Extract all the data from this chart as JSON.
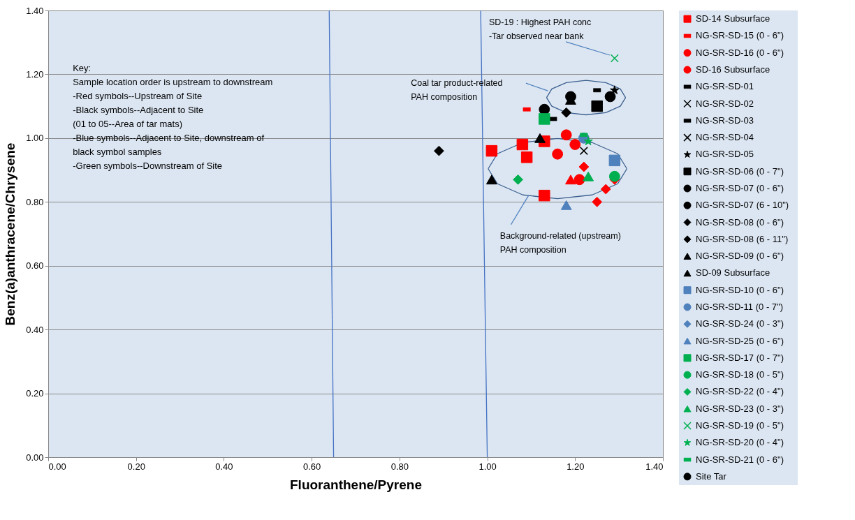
{
  "chart_data": {
    "type": "scatter",
    "xlabel": "Fluoranthene/Pyrene",
    "ylabel": "Benz(a)anthracene/Chrysene",
    "xlim": [
      0,
      1.4
    ],
    "ylim": [
      0,
      1.4
    ],
    "xticks": [
      {
        "value": 0,
        "label": "0.00"
      },
      {
        "value": 0.2,
        "label": "0.20"
      },
      {
        "value": 0.4,
        "label": "0.40"
      },
      {
        "value": 0.6,
        "label": "0.60"
      },
      {
        "value": 0.8,
        "label": "0.80"
      },
      {
        "value": 1.0,
        "label": "1.00"
      },
      {
        "value": 1.2,
        "label": "1.20"
      },
      {
        "value": 1.4,
        "label": "1.40"
      }
    ],
    "yticks": [
      {
        "value": 0,
        "label": "0.00"
      },
      {
        "value": 0.2,
        "label": "0.20"
      },
      {
        "value": 0.4,
        "label": "0.40"
      },
      {
        "value": 0.6,
        "label": "0.60"
      },
      {
        "value": 0.8,
        "label": "0.80"
      },
      {
        "value": 1.0,
        "label": "1.00"
      },
      {
        "value": 1.2,
        "label": "1.20"
      },
      {
        "value": 1.4,
        "label": "1.40"
      }
    ],
    "grid": "y",
    "legend": "right",
    "annotations": [
      "Key:\nSample location order is upstream to downstream\n-Red symbols--Upstream of Site\n-Black symbols--Adjacent to Site\n (01 to 05--Area of tar mats)\n-Blue symbols--Adjacent to Site, downstream of\n black symbol samples\n-Green symbols--Downstream of Site",
      "SD-19 : Highest PAH conc\n-Tar observed near bank",
      "Coal tar product-related\nPAH composition",
      "Background-related (upstream)\nPAH composition"
    ],
    "series": [
      {
        "type": "line",
        "color": "#4472c4",
        "x": [
          0.65,
          0.64
        ],
        "values": [
          0,
          1.4
        ]
      },
      {
        "type": "line",
        "color": "#4472c4",
        "x": [
          1.0,
          0.985
        ],
        "values": [
          0,
          1.4
        ]
      },
      {
        "type": "line",
        "color": "#3b5f8f",
        "x": [
          1.315,
          1.303,
          1.27,
          1.225,
          1.18,
          1.147,
          1.135
        ],
        "values": [
          1.127,
          1.154,
          1.174,
          1.181,
          1.174,
          1.154,
          1.127
        ]
      },
      {
        "type": "line",
        "color": "#3b5f8f",
        "x": [
          1.135,
          1.147,
          1.18,
          1.225,
          1.27,
          1.303,
          1.315
        ],
        "values": [
          1.127,
          1.1,
          1.08,
          1.073,
          1.08,
          1.1,
          1.127
        ]
      },
      {
        "type": "line",
        "color": "#3b5f8f",
        "x": [
          1.318,
          1.297,
          1.239,
          1.16,
          1.081,
          1.023,
          1.002
        ],
        "values": [
          0.904,
          0.951,
          0.986,
          0.999,
          0.986,
          0.951,
          0.904
        ]
      },
      {
        "type": "line",
        "color": "#3b5f8f",
        "x": [
          1.002,
          1.023,
          1.081,
          1.16,
          1.239,
          1.297,
          1.318
        ],
        "values": [
          0.904,
          0.857,
          0.822,
          0.81,
          0.822,
          0.857,
          0.904
        ]
      },
      {
        "type": "line",
        "color": "#4f81bd",
        "x": [
          1.088,
          1.138
        ],
        "values": [
          1.172,
          1.148
        ]
      },
      {
        "type": "line",
        "color": "#4f81bd",
        "x": [
          1.179,
          1.279
        ],
        "values": [
          1.302,
          1.26
        ]
      },
      {
        "type": "line",
        "color": "#4f81bd",
        "x": [
          1.054,
          1.094
        ],
        "values": [
          0.729,
          0.82
        ]
      },
      {
        "color": "#ff0000",
        "marker": "square",
        "x": [
          1.09
        ],
        "values": [
          0.94
        ]
      },
      {
        "color": "#ff0000",
        "marker": "triangle",
        "x": [
          1.19
        ],
        "values": [
          0.87
        ]
      },
      {
        "color": "#ff0000",
        "marker": "diamond",
        "x": [
          1.25
        ],
        "values": [
          0.8
        ]
      },
      {
        "color": "#ff0000",
        "marker": "diamond",
        "x": [
          1.22,
          1.27,
          1.29
        ],
        "values": [
          0.91,
          0.84,
          0.87
        ]
      },
      {
        "name": "SD-14 Subsurface",
        "color": "#ff0000",
        "marker": "square",
        "x": [
          1.01,
          1.08,
          1.13,
          1.13
        ],
        "values": [
          0.96,
          0.98,
          0.99,
          0.82
        ]
      },
      {
        "name": "NG-SR-SD-15 (0 - 6\")",
        "color": "#ff0000",
        "x": [
          1.09
        ],
        "values": [
          1.09
        ]
      },
      {
        "name": "NG-SR-SD-16 (0 - 6\")",
        "color": "#ff0000",
        "marker": "circle",
        "x": [
          1.16
        ],
        "values": [
          0.95
        ]
      },
      {
        "name": "SD-16 Subsurface",
        "color": "#ff0000",
        "marker": "circle",
        "x": [
          1.18,
          1.2,
          1.21
        ],
        "values": [
          1.01,
          0.98,
          0.87
        ]
      },
      {
        "name": "NG-SR-SD-01",
        "color": "#000000",
        "x": [
          1.25
        ],
        "values": [
          1.15
        ]
      },
      {
        "name": "NG-SR-SD-02",
        "color": "#000000",
        "marker": "cross",
        "x": [
          1.22
        ],
        "values": [
          0.96
        ]
      },
      {
        "name": "NG-SR-SD-03",
        "color": "#000000",
        "x": [
          1.15
        ],
        "values": [
          1.06
        ]
      },
      {
        "name": "NG-SR-SD-04",
        "color": "#000000",
        "marker": "cross",
        "x": [
          null
        ],
        "values": [
          null
        ]
      },
      {
        "name": "NG-SR-SD-05",
        "color": "#000000",
        "marker": "star",
        "x": [
          1.29
        ],
        "values": [
          1.15
        ]
      },
      {
        "name": "NG-SR-SD-06 (0 - 7\")",
        "color": "#000000",
        "marker": "square",
        "x": [
          1.25
        ],
        "values": [
          1.1
        ]
      },
      {
        "name": "NG-SR-SD-07 (0 - 6\")",
        "color": "#000000",
        "marker": "circle",
        "x": [
          1.28
        ],
        "values": [
          1.13
        ]
      },
      {
        "name": "NG-SR-SD-07 (6 - 10\")",
        "color": "#000000",
        "marker": "circle",
        "x": [
          1.13
        ],
        "values": [
          1.09
        ]
      },
      {
        "name": "NG-SR-SD-08 (0 - 6\")",
        "color": "#000000",
        "marker": "diamond",
        "x": [
          1.18
        ],
        "values": [
          1.08
        ]
      },
      {
        "name": "NG-SR-SD-08 (6 - 11\")",
        "color": "#000000",
        "marker": "diamond",
        "x": [
          0.89
        ],
        "values": [
          0.96
        ]
      },
      {
        "name": "NG-SR-SD-09 (0 - 6\")",
        "color": "#000000",
        "marker": "triangle",
        "x": [
          1.19
        ],
        "values": [
          1.12
        ]
      },
      {
        "name": "SD-09 Subsurface",
        "color": "#000000",
        "marker": "triangle",
        "x": [
          1.01,
          1.12
        ],
        "values": [
          0.87,
          1.0
        ]
      },
      {
        "name": "NG-SR-SD-10 (0 - 6\")",
        "color": "#4f81bd",
        "marker": "square",
        "x": [
          1.29
        ],
        "values": [
          0.93
        ]
      },
      {
        "name": "NG-SR-SD-11 (0 - 7\")",
        "color": "#4f81bd",
        "marker": "circle",
        "x": [
          1.22
        ],
        "values": [
          1.0
        ]
      },
      {
        "name": "NG-SR-SD-24 (0 - 3\")",
        "color": "#4f81bd",
        "marker": "diamond",
        "x": [
          null
        ],
        "values": [
          null
        ]
      },
      {
        "name": "NG-SR-SD-25 (0 - 6\")",
        "color": "#4f81bd",
        "marker": "triangle",
        "x": [
          1.18
        ],
        "values": [
          0.79
        ]
      },
      {
        "name": "NG-SR-SD-17 (0 - 7\")",
        "color": "#00b050",
        "marker": "square",
        "x": [
          1.13
        ],
        "values": [
          1.06
        ]
      },
      {
        "name": "NG-SR-SD-18 (0 - 5\")",
        "color": "#00b050",
        "marker": "circle",
        "x": [
          1.29
        ],
        "values": [
          0.88
        ]
      },
      {
        "name": "NG-SR-SD-22 (0 - 4\")",
        "color": "#00b050",
        "marker": "diamond",
        "x": [
          1.07
        ],
        "values": [
          0.87
        ]
      },
      {
        "name": "NG-SR-SD-23 (0 - 3\")",
        "color": "#00b050",
        "marker": "triangle",
        "x": [
          1.23
        ],
        "values": [
          0.88
        ]
      },
      {
        "name": "NG-SR-SD-19 (0 - 5\")",
        "color": "#00b050",
        "marker": "cross",
        "x": [
          1.29
        ],
        "values": [
          1.25
        ]
      },
      {
        "name": "NG-SR-SD-20 (0 - 4\")",
        "color": "#00b050",
        "marker": "star",
        "x": [
          1.23
        ],
        "values": [
          0.99
        ]
      },
      {
        "name": "NG-SR-SD-21 (0 - 6\")",
        "color": "#00b050",
        "x": [
          1.22
        ],
        "values": [
          1.01
        ]
      },
      {
        "name": "Site Tar",
        "color": "#000000",
        "marker": "circle",
        "x": [
          1.19
        ],
        "values": [
          1.13
        ]
      }
    ]
  }
}
